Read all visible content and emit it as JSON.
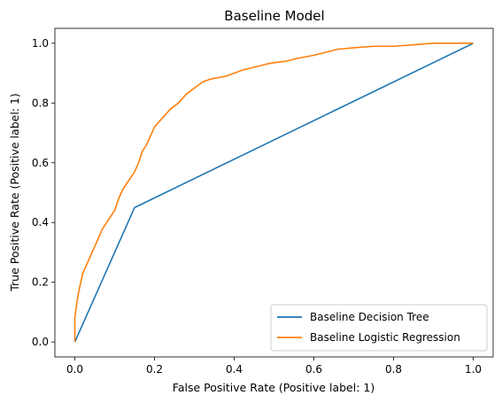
{
  "chart_data": {
    "type": "line",
    "title": "Baseline Model",
    "xlabel": "False Positive Rate (Positive label: 1)",
    "ylabel": "True Positive Rate (Positive label: 1)",
    "xlim": [
      -0.05,
      1.05
    ],
    "ylim": [
      -0.05,
      1.05
    ],
    "xticks": [
      "0.0",
      "0.2",
      "0.4",
      "0.6",
      "0.8",
      "1.0"
    ],
    "yticks": [
      "0.0",
      "0.2",
      "0.4",
      "0.6",
      "0.8",
      "1.0"
    ],
    "grid": false,
    "legend_position": "bottom-right",
    "series": [
      {
        "name": "Baseline Decision Tree",
        "color": "#1f77b4",
        "x": [
          0.0,
          0.15,
          1.0
        ],
        "y": [
          0.0,
          0.45,
          1.0
        ]
      },
      {
        "name": "Baseline Logistic Regression",
        "color": "#ff7f0e",
        "x": [
          0.0,
          0.0,
          0.005,
          0.01,
          0.015,
          0.02,
          0.03,
          0.04,
          0.05,
          0.06,
          0.07,
          0.08,
          0.09,
          0.1,
          0.11,
          0.12,
          0.13,
          0.14,
          0.15,
          0.16,
          0.17,
          0.18,
          0.19,
          0.2,
          0.22,
          0.24,
          0.26,
          0.28,
          0.3,
          0.32,
          0.34,
          0.36,
          0.38,
          0.4,
          0.42,
          0.45,
          0.48,
          0.5,
          0.53,
          0.56,
          0.6,
          0.63,
          0.66,
          0.7,
          0.75,
          0.8,
          0.85,
          0.9,
          0.95,
          1.0
        ],
        "y": [
          0.0,
          0.08,
          0.13,
          0.17,
          0.2,
          0.23,
          0.26,
          0.29,
          0.32,
          0.35,
          0.38,
          0.4,
          0.42,
          0.44,
          0.48,
          0.51,
          0.53,
          0.55,
          0.57,
          0.6,
          0.64,
          0.66,
          0.69,
          0.72,
          0.75,
          0.78,
          0.8,
          0.83,
          0.85,
          0.87,
          0.88,
          0.885,
          0.89,
          0.9,
          0.91,
          0.92,
          0.93,
          0.935,
          0.94,
          0.95,
          0.96,
          0.97,
          0.98,
          0.985,
          0.99,
          0.99,
          0.995,
          1.0,
          1.0,
          1.0
        ]
      }
    ]
  }
}
